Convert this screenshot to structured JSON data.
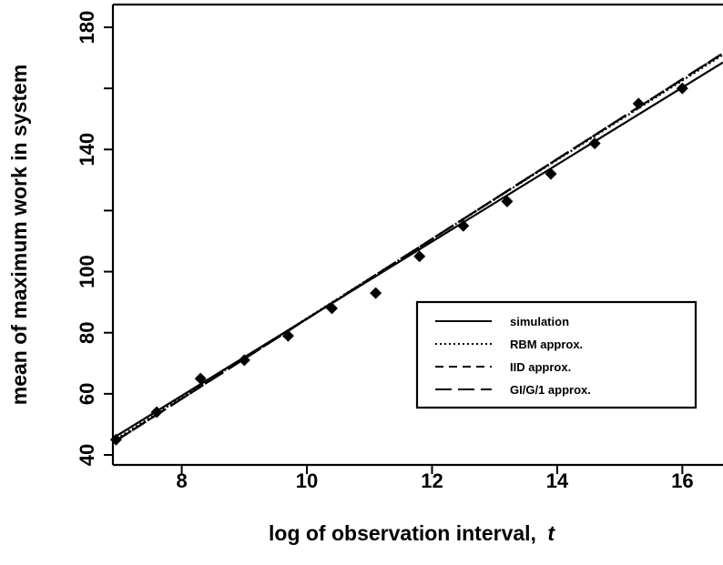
{
  "chart_data": {
    "type": "line",
    "xlabel": "log of observation interval,",
    "xlabel_var": "t",
    "ylabel": "mean of maximum work in system",
    "xlim": [
      6.9,
      16.65
    ],
    "ylim": [
      39,
      188
    ],
    "xticks": [
      8,
      10,
      12,
      14,
      16
    ],
    "yticks": [
      40,
      60,
      80,
      100,
      140,
      180
    ],
    "yminor_ticks": [
      120,
      160
    ],
    "grid": false,
    "legend_position": "center-right",
    "series": [
      {
        "name": "simulation",
        "style": "solid",
        "x": [
          6.9,
          16.65
        ],
        "y": [
          45.5,
          168.5
        ]
      },
      {
        "name": "RBM approx.",
        "style": "dotted",
        "x": [
          6.9,
          16.65
        ],
        "y": [
          44.5,
          171.0
        ]
      },
      {
        "name": "IID approx.",
        "style": "dashed",
        "x": [
          6.9,
          16.65
        ],
        "y": [
          44.0,
          171.5
        ]
      },
      {
        "name": "GI/G/1 approx.",
        "style": "longdash",
        "x": [
          6.9,
          16.65
        ],
        "y": [
          44.0,
          171.5
        ]
      }
    ],
    "points": {
      "x": [
        6.95,
        7.6,
        8.3,
        9.0,
        9.7,
        10.4,
        11.1,
        11.8,
        12.5,
        13.2,
        13.9,
        14.6,
        15.3,
        16.0
      ],
      "y": [
        45,
        54,
        65,
        71,
        79,
        88,
        93,
        105,
        115,
        123,
        132,
        142,
        155,
        160
      ]
    }
  }
}
